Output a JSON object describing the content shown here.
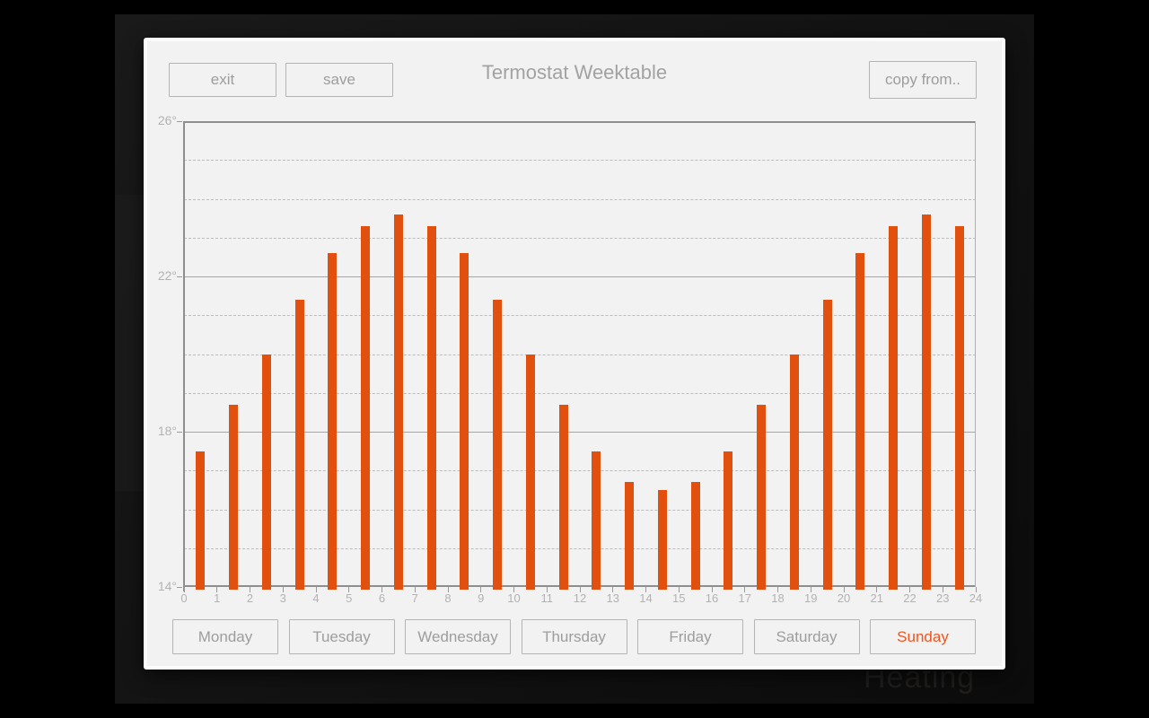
{
  "dialog": {
    "title": "Termostat Weektable"
  },
  "toolbar": {
    "exit_label": "exit",
    "save_label": "save",
    "copy_from_label": "copy from.."
  },
  "days": {
    "items": [
      {
        "label": "Monday",
        "active": false
      },
      {
        "label": "Tuesday",
        "active": false
      },
      {
        "label": "Wednesday",
        "active": false
      },
      {
        "label": "Thursday",
        "active": false
      },
      {
        "label": "Friday",
        "active": false
      },
      {
        "label": "Saturday",
        "active": false
      },
      {
        "label": "Sunday",
        "active": true
      }
    ]
  },
  "background": {
    "watermark": "Heating"
  },
  "colors": {
    "bar": "#e2500f",
    "active_day": "#f2541d",
    "panel": "#f2f2f2",
    "button_text": "#9d9d9d",
    "axis": "#8e8e8e"
  },
  "chart_data": {
    "type": "bar",
    "title": "",
    "xlabel": "",
    "ylabel": "",
    "x_hours": [
      0,
      1,
      2,
      3,
      4,
      5,
      6,
      7,
      8,
      9,
      10,
      11,
      12,
      13,
      14,
      15,
      16,
      17,
      18,
      19,
      20,
      21,
      22,
      23
    ],
    "values": [
      17.5,
      18.7,
      20.0,
      21.4,
      22.6,
      23.3,
      23.6,
      23.3,
      22.6,
      21.4,
      20.0,
      18.7,
      17.5,
      16.7,
      16.5,
      16.7,
      17.5,
      18.7,
      20.0,
      21.4,
      22.6,
      23.3,
      23.6,
      23.3
    ],
    "xlim": [
      0,
      24
    ],
    "ylim": [
      14,
      26
    ],
    "x_tick_labels": [
      "0",
      "1",
      "2",
      "3",
      "4",
      "5",
      "6",
      "7",
      "8",
      "9",
      "10",
      "11",
      "12",
      "13",
      "14",
      "15",
      "16",
      "17",
      "18",
      "19",
      "20",
      "21",
      "22",
      "23",
      "24"
    ],
    "y_tick_labels": [
      {
        "value": 26,
        "label": "26°"
      },
      {
        "value": 22,
        "label": "22°"
      },
      {
        "value": 18,
        "label": "18°"
      },
      {
        "value": 14,
        "label": "14°"
      }
    ],
    "solid_gridlines": [
      26,
      22,
      18,
      14
    ],
    "dashed_gridlines": [
      15,
      16,
      17,
      19,
      20,
      21,
      23,
      24,
      25
    ],
    "grid": true,
    "legend": false,
    "bar_color": "#e2500f"
  }
}
